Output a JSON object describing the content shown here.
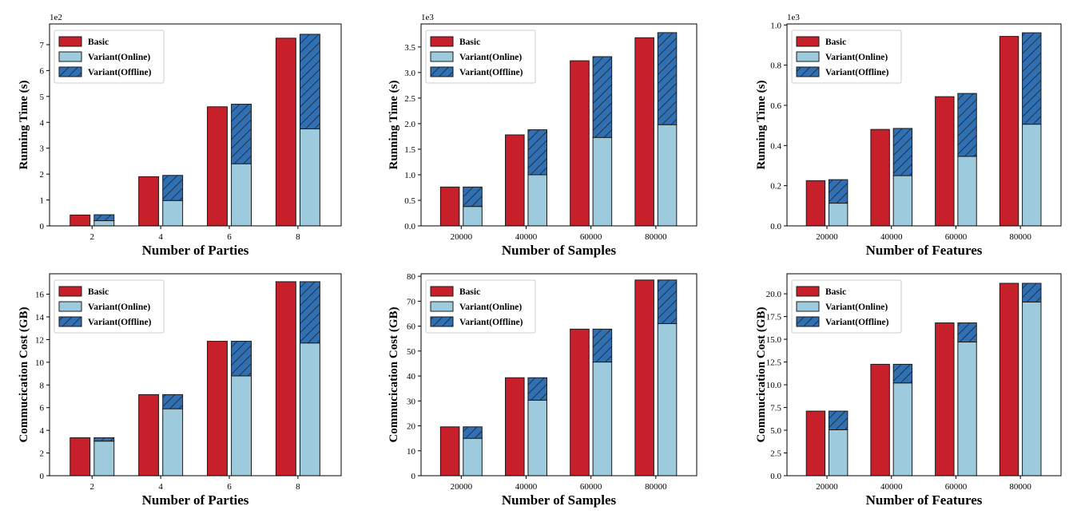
{
  "colors": {
    "basic": "#c8202a",
    "online": "#9dcbdd",
    "offline": "#2f6fb2",
    "edge": "#1a1a1a"
  },
  "legend_labels": [
    "Basic",
    "Variant(Online)",
    "Variant(Offline)"
  ],
  "chart_data": [
    {
      "type": "bar",
      "id": "rt-parties",
      "title": "",
      "xlabel": "Number of Parties",
      "ylabel": "Running Time (s)",
      "categories": [
        "2",
        "4",
        "6",
        "8"
      ],
      "sci_label": "1e2",
      "ylim": [
        0,
        7.8
      ],
      "yticks": [
        0,
        1,
        2,
        3,
        4,
        5,
        6,
        7
      ],
      "ytick_labels": [
        "0",
        "1",
        "2",
        "3",
        "4",
        "5",
        "6",
        "7"
      ],
      "series": [
        {
          "name": "Basic",
          "values": [
            0.42,
            1.9,
            4.6,
            7.25
          ]
        },
        {
          "name": "Variant(Online)",
          "values": [
            0.2,
            0.98,
            2.4,
            3.75
          ]
        },
        {
          "name": "Variant(Offline)",
          "values": [
            0.23,
            0.97,
            2.3,
            3.65
          ]
        }
      ]
    },
    {
      "type": "bar",
      "id": "rt-samples",
      "title": "",
      "xlabel": "Number of Samples",
      "ylabel": "Running Time (s)",
      "categories": [
        "20000",
        "40000",
        "60000",
        "80000"
      ],
      "sci_label": "1e3",
      "ylim": [
        0,
        3.95
      ],
      "yticks": [
        0,
        0.5,
        1,
        1.5,
        2,
        2.5,
        3,
        3.5
      ],
      "ytick_labels": [
        "0.0",
        "0.5",
        "1.0",
        "1.5",
        "2.0",
        "2.5",
        "3.0",
        "3.5"
      ],
      "series": [
        {
          "name": "Basic",
          "values": [
            0.76,
            1.78,
            3.23,
            3.68
          ]
        },
        {
          "name": "Variant(Online)",
          "values": [
            0.38,
            1.0,
            1.73,
            1.98
          ]
        },
        {
          "name": "Variant(Offline)",
          "values": [
            0.38,
            0.88,
            1.58,
            1.8
          ]
        }
      ]
    },
    {
      "type": "bar",
      "id": "rt-features",
      "title": "",
      "xlabel": "Number of Features",
      "ylabel": "Running Time (s)",
      "categories": [
        "20000",
        "40000",
        "60000",
        "80000"
      ],
      "sci_label": "1e3",
      "ylim": [
        0,
        1.005
      ],
      "yticks": [
        0,
        0.2,
        0.4,
        0.6,
        0.8,
        1.0
      ],
      "ytick_labels": [
        "0.0",
        "0.2",
        "0.4",
        "0.6",
        "0.8",
        "1.0"
      ],
      "series": [
        {
          "name": "Basic",
          "values": [
            0.225,
            0.48,
            0.643,
            0.943
          ]
        },
        {
          "name": "Variant(Online)",
          "values": [
            0.113,
            0.25,
            0.346,
            0.506
          ]
        },
        {
          "name": "Variant(Offline)",
          "values": [
            0.117,
            0.235,
            0.313,
            0.455
          ]
        }
      ]
    },
    {
      "type": "bar",
      "id": "cc-parties",
      "title": "",
      "xlabel": "Number of Parties",
      "ylabel": "Commucication Cost (GB)",
      "categories": [
        "2",
        "4",
        "6",
        "8"
      ],
      "sci_label": "",
      "ylim": [
        0,
        17.8
      ],
      "yticks": [
        0,
        2,
        4,
        6,
        8,
        10,
        12,
        14,
        16
      ],
      "ytick_labels": [
        "0",
        "2",
        "4",
        "6",
        "8",
        "10",
        "12",
        "14",
        "16"
      ],
      "series": [
        {
          "name": "Basic",
          "values": [
            3.35,
            7.15,
            11.85,
            17.1
          ]
        },
        {
          "name": "Variant(Online)",
          "values": [
            3.05,
            5.9,
            8.8,
            11.7
          ]
        },
        {
          "name": "Variant(Offline)",
          "values": [
            0.3,
            1.25,
            3.05,
            5.4
          ]
        }
      ]
    },
    {
      "type": "bar",
      "id": "cc-samples",
      "title": "",
      "xlabel": "Number of Samples",
      "ylabel": "Commucication Cost (GB)",
      "categories": [
        "20000",
        "40000",
        "60000",
        "80000"
      ],
      "sci_label": "",
      "ylim": [
        0,
        81
      ],
      "yticks": [
        0,
        10,
        20,
        30,
        40,
        50,
        60,
        70,
        80
      ],
      "ytick_labels": [
        "0",
        "10",
        "20",
        "30",
        "40",
        "50",
        "60",
        "70",
        "80"
      ],
      "series": [
        {
          "name": "Basic",
          "values": [
            19.6,
            39.3,
            58.8,
            78.5
          ]
        },
        {
          "name": "Variant(Online)",
          "values": [
            15.0,
            30.3,
            45.6,
            61.0
          ]
        },
        {
          "name": "Variant(Offline)",
          "values": [
            4.6,
            9.0,
            13.2,
            17.5
          ]
        }
      ]
    },
    {
      "type": "bar",
      "id": "cc-features",
      "title": "",
      "xlabel": "Number of Features",
      "ylabel": "Commucication Cost (GB)",
      "categories": [
        "20000",
        "40000",
        "60000",
        "80000"
      ],
      "sci_label": "",
      "ylim": [
        0,
        22.2
      ],
      "yticks": [
        0,
        2.5,
        5,
        7.5,
        10,
        12.5,
        15,
        17.5,
        20
      ],
      "ytick_labels": [
        "0.0",
        "2.5",
        "5.0",
        "7.5",
        "10.0",
        "12.5",
        "15.0",
        "17.5",
        "20.0"
      ],
      "series": [
        {
          "name": "Basic",
          "values": [
            7.1,
            12.25,
            16.8,
            21.15
          ]
        },
        {
          "name": "Variant(Online)",
          "values": [
            5.05,
            10.2,
            14.7,
            19.1
          ]
        },
        {
          "name": "Variant(Offline)",
          "values": [
            2.05,
            2.05,
            2.1,
            2.05
          ]
        }
      ]
    }
  ]
}
